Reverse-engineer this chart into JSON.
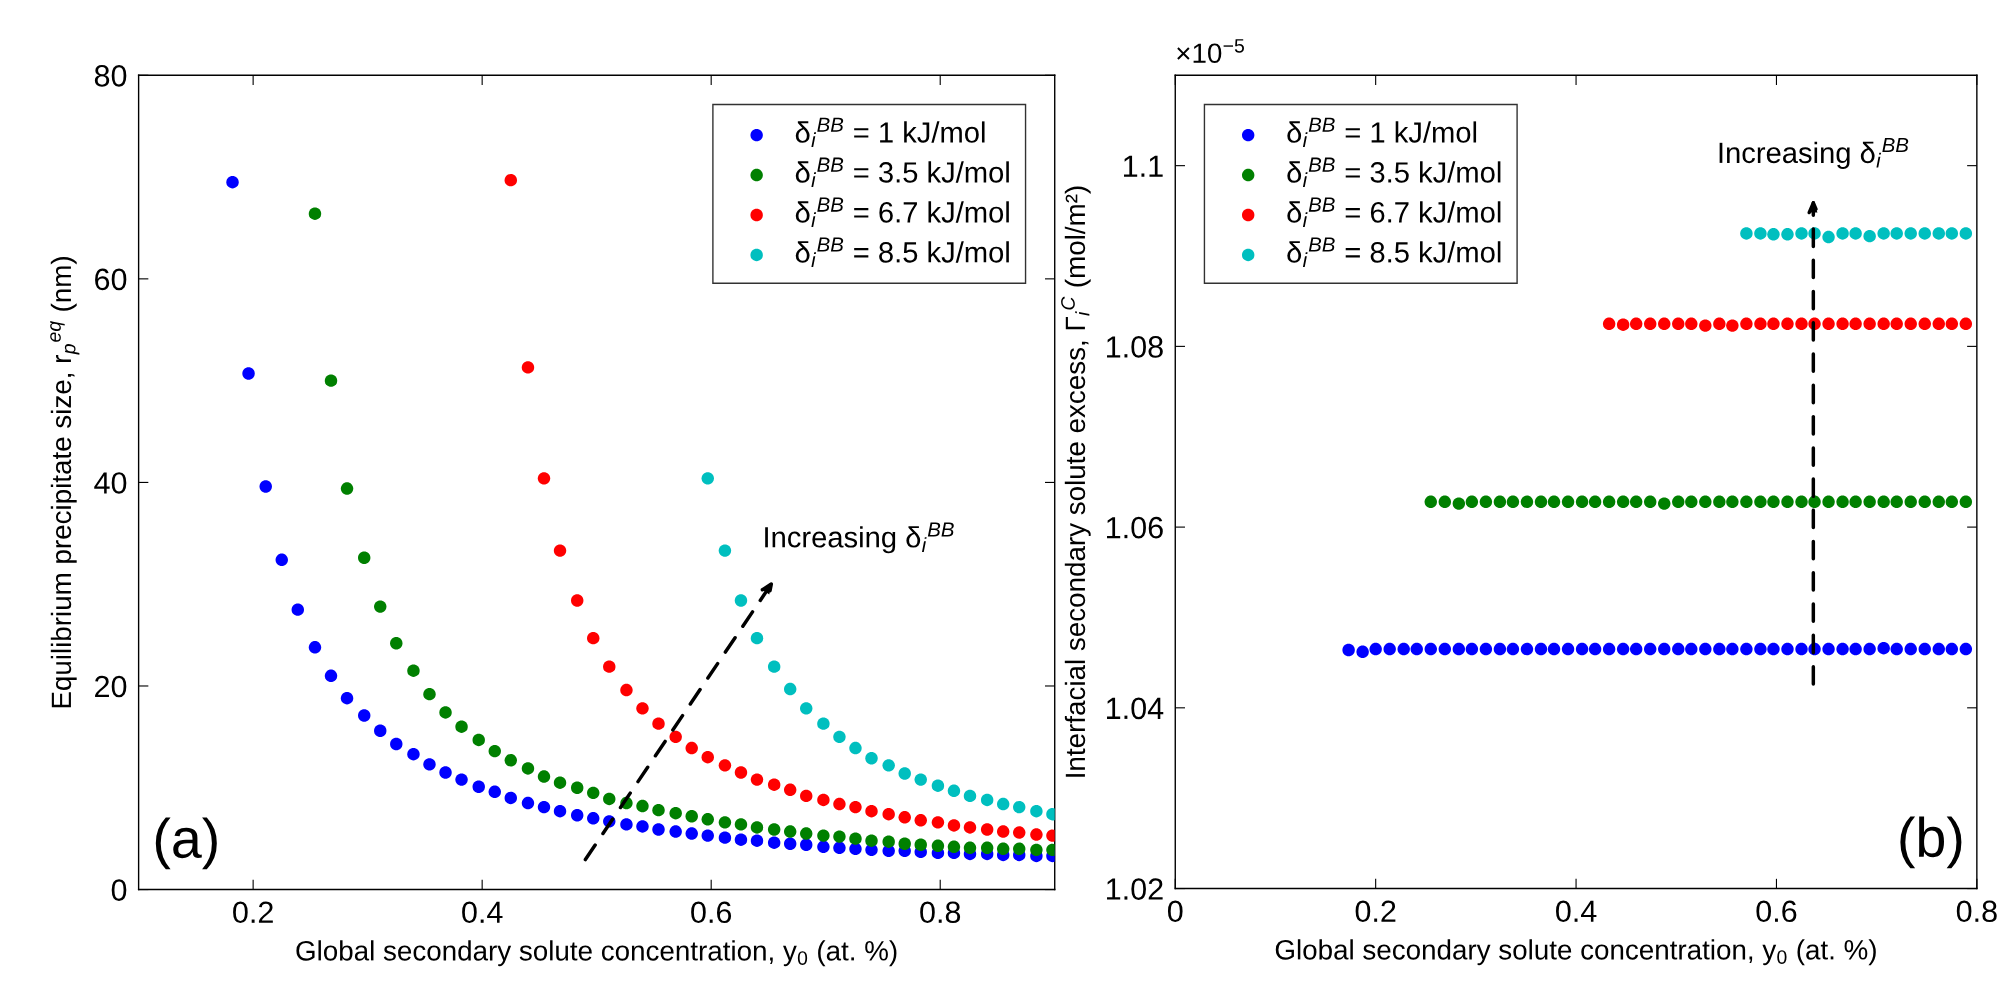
{
  "chart_data": [
    {
      "type": "scatter",
      "xlabel": "Global secondary solute concentration, y$_{0}$ (at. %)",
      "ylabel": "Equilibrium precipitate size, r$_{p}$$^{eq}$ (nm)",
      "xlim": [
        0.1,
        0.9
      ],
      "xticks": [
        0.2,
        0.4,
        0.6,
        0.8
      ],
      "ylim": [
        0,
        80
      ],
      "yticks": [
        0,
        20,
        40,
        60,
        80
      ],
      "grid": false,
      "legend": "top right",
      "marker": "circle",
      "series": [
        {
          "name": "δ$_{i}$$^{BB}$ = 1 kJ/mol",
          "color": "#0000ff",
          "x": [
            0.182,
            0.196,
            0.211,
            0.225,
            0.239,
            0.254,
            0.268,
            0.282,
            0.297,
            0.311,
            0.325,
            0.34,
            0.354,
            0.368,
            0.382,
            0.397,
            0.411,
            0.425,
            0.44,
            0.454,
            0.468,
            0.483,
            0.497,
            0.511,
            0.526,
            0.54,
            0.554,
            0.569,
            0.583,
            0.597,
            0.612,
            0.626,
            0.64,
            0.655,
            0.669,
            0.683,
            0.698,
            0.712,
            0.726,
            0.74,
            0.755,
            0.769,
            0.783,
            0.798,
            0.812,
            0.826,
            0.841,
            0.855,
            0.869,
            0.884,
            0.898
          ],
          "values": [
            69.5,
            50.7,
            39.6,
            32.4,
            27.5,
            23.8,
            21.0,
            18.8,
            17.1,
            15.6,
            14.3,
            13.3,
            12.3,
            11.5,
            10.8,
            10.1,
            9.6,
            9.0,
            8.5,
            8.1,
            7.7,
            7.3,
            7.0,
            6.7,
            6.4,
            6.2,
            5.9,
            5.7,
            5.5,
            5.3,
            5.1,
            4.9,
            4.8,
            4.6,
            4.5,
            4.4,
            4.2,
            4.1,
            4.0,
            3.9,
            3.8,
            3.8,
            3.7,
            3.6,
            3.6,
            3.5,
            3.5,
            3.4,
            3.4,
            3.3,
            3.3
          ]
        },
        {
          "name": "δ$_{i}$$^{BB}$ = 3.5 kJ/mol",
          "color": "#008000",
          "x": [
            0.254,
            0.268,
            0.282,
            0.297,
            0.311,
            0.325,
            0.34,
            0.354,
            0.368,
            0.382,
            0.397,
            0.411,
            0.425,
            0.44,
            0.454,
            0.468,
            0.483,
            0.497,
            0.511,
            0.526,
            0.54,
            0.554,
            0.569,
            0.583,
            0.597,
            0.612,
            0.626,
            0.64,
            0.655,
            0.669,
            0.683,
            0.698,
            0.712,
            0.726,
            0.74,
            0.755,
            0.769,
            0.783,
            0.798,
            0.812,
            0.826,
            0.841,
            0.855,
            0.869,
            0.884,
            0.898
          ],
          "values": [
            66.4,
            50.0,
            39.4,
            32.6,
            27.8,
            24.2,
            21.5,
            19.2,
            17.4,
            16.0,
            14.7,
            13.6,
            12.7,
            11.9,
            11.1,
            10.5,
            10.0,
            9.5,
            8.9,
            8.5,
            8.2,
            7.8,
            7.5,
            7.2,
            6.9,
            6.6,
            6.4,
            6.1,
            5.9,
            5.7,
            5.5,
            5.3,
            5.2,
            5.0,
            4.8,
            4.7,
            4.5,
            4.4,
            4.3,
            4.2,
            4.1,
            4.1,
            4.0,
            4.0,
            3.9,
            3.9
          ]
        },
        {
          "name": "δ$_{i}$$^{BB}$ = 6.7 kJ/mol",
          "color": "#ff0000",
          "x": [
            0.425,
            0.44,
            0.454,
            0.468,
            0.483,
            0.497,
            0.511,
            0.526,
            0.54,
            0.554,
            0.569,
            0.583,
            0.597,
            0.612,
            0.626,
            0.64,
            0.655,
            0.669,
            0.683,
            0.698,
            0.712,
            0.726,
            0.74,
            0.755,
            0.769,
            0.783,
            0.798,
            0.812,
            0.826,
            0.841,
            0.855,
            0.869,
            0.884,
            0.898
          ],
          "values": [
            69.7,
            51.3,
            40.4,
            33.3,
            28.4,
            24.7,
            21.9,
            19.6,
            17.8,
            16.3,
            15.0,
            13.9,
            13.0,
            12.2,
            11.5,
            10.8,
            10.3,
            9.8,
            9.2,
            8.8,
            8.4,
            8.1,
            7.7,
            7.4,
            7.1,
            6.8,
            6.6,
            6.3,
            6.1,
            5.9,
            5.7,
            5.6,
            5.4,
            5.3
          ]
        },
        {
          "name": "δ$_{i}$$^{BB}$ = 8.5 kJ/mol",
          "color": "#00bfbf",
          "x": [
            0.597,
            0.612,
            0.626,
            0.64,
            0.655,
            0.669,
            0.683,
            0.698,
            0.712,
            0.726,
            0.74,
            0.755,
            0.769,
            0.783,
            0.798,
            0.812,
            0.826,
            0.841,
            0.855,
            0.869,
            0.884,
            0.898
          ],
          "values": [
            40.4,
            33.3,
            28.4,
            24.7,
            21.9,
            19.7,
            17.8,
            16.3,
            15.0,
            13.9,
            12.9,
            12.2,
            11.4,
            10.8,
            10.2,
            9.7,
            9.2,
            8.8,
            8.4,
            8.1,
            7.7,
            7.4
          ]
        }
      ],
      "annotations": [
        "(a)",
        "Increasing δ$_{i}$$^{BB}$"
      ]
    },
    {
      "type": "scatter",
      "xlabel": "Global secondary solute concentration, y$_{0}$ (at. %)",
      "ylabel": "Interfacial secondary solute excess, Γ$_{i}$$^{C}$ (mol/m²)",
      "xlim": [
        0,
        0.8
      ],
      "xticks": [
        0,
        0.2,
        0.4,
        0.6,
        0.8
      ],
      "ylim": [
        1.02,
        1.11
      ],
      "yticks": [
        1.02,
        1.04,
        1.06,
        1.08,
        {
          "value": 1.1,
          "label": "1.1"
        }
      ],
      "grid": false,
      "legend": "top left",
      "marker": "circle",
      "series": [
        {
          "name": "δ$_{i}$$^{BB}$ = 1 kJ/mol",
          "color": "#0000ff",
          "x": [
            0.173,
            0.187,
            0.2,
            0.214,
            0.228,
            0.241,
            0.255,
            0.269,
            0.283,
            0.296,
            0.31,
            0.324,
            0.337,
            0.351,
            0.365,
            0.378,
            0.392,
            0.406,
            0.419,
            0.433,
            0.447,
            0.46,
            0.474,
            0.488,
            0.502,
            0.515,
            0.529,
            0.543,
            0.556,
            0.57,
            0.584,
            0.597,
            0.611,
            0.625,
            0.638,
            0.652,
            0.666,
            0.679,
            0.693,
            0.707,
            0.72,
            0.734,
            0.748,
            0.762,
            0.775,
            0.789
          ],
          "values": [
            1.0464,
            1.0462,
            1.0465,
            1.0465,
            1.0465,
            1.0465,
            1.0465,
            1.0465,
            1.0465,
            1.0465,
            1.0465,
            1.0465,
            1.0465,
            1.0465,
            1.0465,
            1.0465,
            1.0465,
            1.0465,
            1.0465,
            1.0465,
            1.0465,
            1.0465,
            1.0465,
            1.0465,
            1.0465,
            1.0465,
            1.0465,
            1.0465,
            1.0465,
            1.0465,
            1.0465,
            1.0465,
            1.0465,
            1.0465,
            1.0465,
            1.0465,
            1.0465,
            1.0465,
            1.0465,
            1.0466,
            1.0465,
            1.0465,
            1.0465,
            1.0465,
            1.0465,
            1.0465
          ]
        },
        {
          "name": "δ$_{i}$$^{BB}$ = 3.5 kJ/mol",
          "color": "#008000",
          "x": [
            0.255,
            0.269,
            0.283,
            0.296,
            0.31,
            0.324,
            0.337,
            0.351,
            0.365,
            0.378,
            0.392,
            0.406,
            0.419,
            0.433,
            0.447,
            0.46,
            0.474,
            0.488,
            0.502,
            0.515,
            0.529,
            0.543,
            0.556,
            0.57,
            0.584,
            0.597,
            0.611,
            0.625,
            0.638,
            0.652,
            0.666,
            0.679,
            0.693,
            0.707,
            0.72,
            0.734,
            0.748,
            0.762,
            0.775,
            0.789
          ],
          "values": [
            1.0628,
            1.0628,
            1.0626,
            1.0628,
            1.0628,
            1.0628,
            1.0628,
            1.0628,
            1.0628,
            1.0628,
            1.0628,
            1.0628,
            1.0628,
            1.0628,
            1.0628,
            1.0628,
            1.0628,
            1.0626,
            1.0628,
            1.0628,
            1.0628,
            1.0628,
            1.0628,
            1.0628,
            1.0628,
            1.0628,
            1.0628,
            1.0628,
            1.0628,
            1.0628,
            1.0628,
            1.0628,
            1.0628,
            1.0628,
            1.0628,
            1.0628,
            1.0628,
            1.0628,
            1.0628,
            1.0628
          ]
        },
        {
          "name": "δ$_{i}$$^{BB}$ = 6.7 kJ/mol",
          "color": "#ff0000",
          "x": [
            0.433,
            0.447,
            0.46,
            0.474,
            0.488,
            0.502,
            0.515,
            0.529,
            0.543,
            0.556,
            0.57,
            0.584,
            0.597,
            0.611,
            0.625,
            0.638,
            0.652,
            0.666,
            0.679,
            0.693,
            0.707,
            0.72,
            0.734,
            0.748,
            0.762,
            0.775,
            0.789
          ],
          "values": [
            1.0825,
            1.0824,
            1.0825,
            1.0825,
            1.0825,
            1.0825,
            1.0825,
            1.0823,
            1.0825,
            1.0823,
            1.0825,
            1.0825,
            1.0825,
            1.0825,
            1.0825,
            1.0825,
            1.0825,
            1.0825,
            1.0825,
            1.0825,
            1.0825,
            1.0825,
            1.0825,
            1.0825,
            1.0825,
            1.0825,
            1.0825
          ]
        },
        {
          "name": "δ$_{i}$$^{BB}$ = 8.5 kJ/mol",
          "color": "#00bfbf",
          "x": [
            0.57,
            0.584,
            0.597,
            0.611,
            0.625,
            0.638,
            0.652,
            0.666,
            0.679,
            0.693,
            0.707,
            0.72,
            0.734,
            0.748,
            0.762,
            0.775,
            0.789
          ],
          "values": [
            1.0925,
            1.0925,
            1.0924,
            1.0924,
            1.0925,
            1.0925,
            1.0921,
            1.0925,
            1.0925,
            1.0922,
            1.0925,
            1.0925,
            1.0925,
            1.0925,
            1.0925,
            1.0925,
            1.0925
          ]
        }
      ],
      "annotations": [
        "×10$^{−5}$",
        "(b)",
        "Increasing δ$_{i}$$^{BB}$"
      ]
    }
  ]
}
